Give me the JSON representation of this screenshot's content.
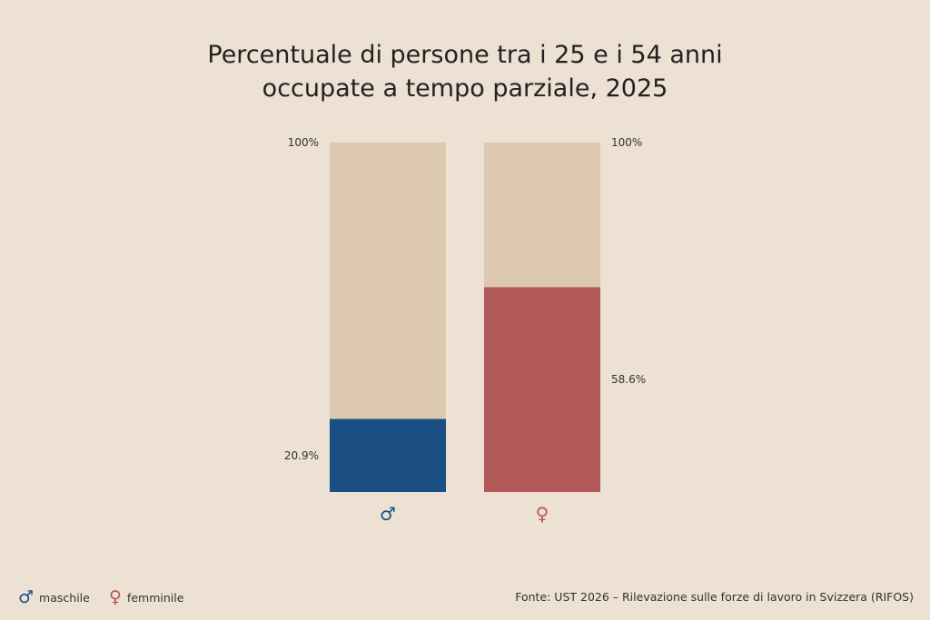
{
  "title_line1": "Percentuale di persone tra i 25 e i 54 anni",
  "title_line2": "occupate a tempo parziale, 2025",
  "legend": [
    {
      "symbol": "♂",
      "label": "maschile",
      "color": "#1b4f84"
    },
    {
      "symbol": "♀",
      "label": "femminile",
      "color": "#b25858"
    }
  ],
  "source": "Fonte: UST 2026 – Rilevazione sulle forze di lavoro in Svizzera (RIFOS)",
  "colors": {
    "background": "#ece1d2",
    "track": "#dcc9b0",
    "male": "#1b4f84",
    "female": "#b25858"
  },
  "chart_data": {
    "type": "bar",
    "categories": [
      "♂",
      "♀"
    ],
    "values": [
      20.9,
      58.6
    ],
    "value_labels": [
      "20.9%",
      "58.6%"
    ],
    "total_labels": [
      "100%",
      "100%"
    ],
    "ylim": [
      0,
      100
    ],
    "title": "Percentuale di persone tra i 25 e i 54 anni occupate a tempo parziale, 2025",
    "grid": false
  }
}
